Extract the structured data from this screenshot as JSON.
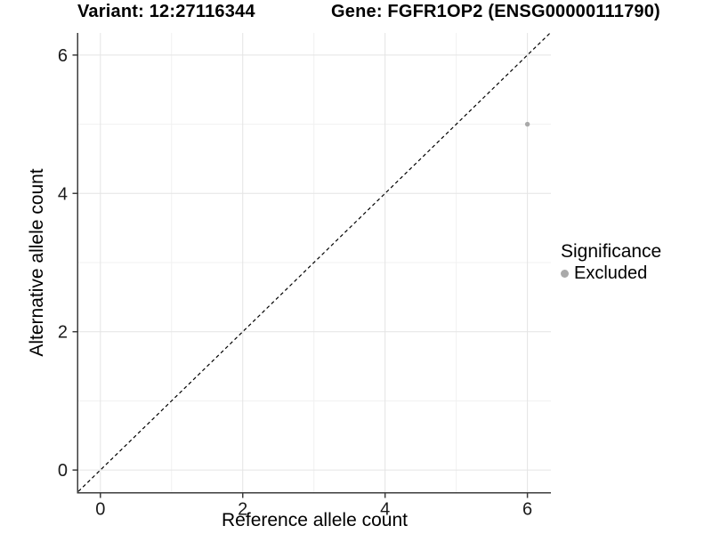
{
  "header": {
    "variant_title": "Variant: 12:27116344",
    "gene_title": "Gene: FGFR1OP2 (ENSG00000111790)"
  },
  "chart_data": {
    "type": "scatter",
    "xlabel": "Reference allele count",
    "ylabel": "Alternative allele count",
    "xlim": [
      -0.31,
      6.33
    ],
    "ylim": [
      -0.32,
      6.32
    ],
    "x_major_ticks": [
      0,
      2,
      4,
      6
    ],
    "y_major_ticks": [
      0,
      2,
      4,
      6
    ],
    "x_minor_ticks": [
      1,
      3,
      5
    ],
    "y_minor_ticks": [
      1,
      3,
      5
    ],
    "grid": true,
    "identity_line": {
      "style": "dashed",
      "color": "#000000"
    },
    "series": [
      {
        "name": "Excluded",
        "color": "#a9a9a9",
        "points": [
          {
            "x": 6,
            "y": 5
          }
        ]
      }
    ],
    "legend": {
      "title": "Significance",
      "position": "right",
      "entries": [
        {
          "label": "Excluded",
          "color": "#a9a9a9"
        }
      ]
    }
  },
  "colors": {
    "background": "#ffffff",
    "grid_major": "#e4e4e4",
    "grid_minor": "#f1f1f1",
    "axis_line": "#3c3c3c",
    "tick_text": "#1a1a1a"
  }
}
